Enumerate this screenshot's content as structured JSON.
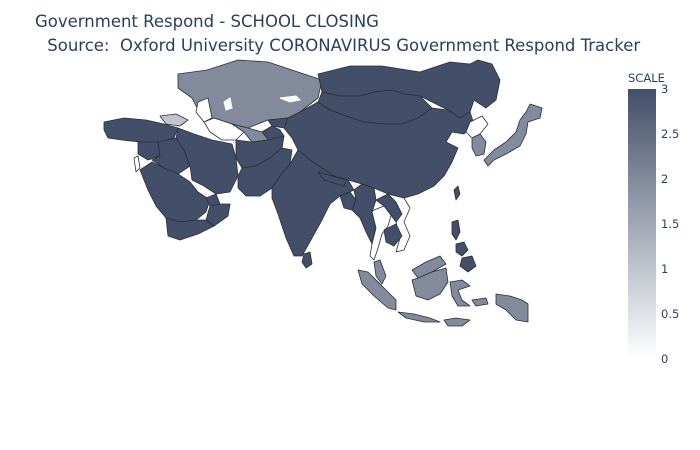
{
  "title": {
    "line1": "Government Respond - SCHOOL CLOSING",
    "line2": " Source:  Oxford University CORONAVIRUS Government Respond Tracker"
  },
  "colorbar": {
    "title": "SCALE",
    "ticks": [
      "0",
      "0.5",
      "1",
      "1.5",
      "2",
      "2.5",
      "3"
    ],
    "min": 0,
    "max": 3,
    "colors": {
      "low": "#ffffff",
      "high": "#434f69"
    }
  },
  "chart_data": {
    "type": "choropleth",
    "region": "Asia",
    "colorscale": [
      "#ffffff",
      "#434f69"
    ],
    "range": [
      0,
      3
    ],
    "regions": [
      {
        "name": "Kazakhstan",
        "value": 2
      },
      {
        "name": "China",
        "value": 3
      },
      {
        "name": "Mongolia",
        "value": 3
      },
      {
        "name": "Russia",
        "value": 3
      },
      {
        "name": "India",
        "value": 3
      },
      {
        "name": "Iran",
        "value": 3
      },
      {
        "name": "Saudi Arabia",
        "value": 3
      },
      {
        "name": "Turkey",
        "value": 3
      },
      {
        "name": "Afghanistan",
        "value": 3
      },
      {
        "name": "Pakistan",
        "value": 3
      },
      {
        "name": "Japan",
        "value": 2
      },
      {
        "name": "South Korea",
        "value": 2
      },
      {
        "name": "North Korea",
        "value": 0
      },
      {
        "name": "Indonesia",
        "value": 2
      },
      {
        "name": "Thailand",
        "value": 0
      },
      {
        "name": "Vietnam",
        "value": 0
      },
      {
        "name": "Myanmar",
        "value": 3
      },
      {
        "name": "Malaysia",
        "value": 2
      },
      {
        "name": "Philippines",
        "value": 3
      },
      {
        "name": "Cambodia",
        "value": 3
      },
      {
        "name": "Laos",
        "value": 3
      },
      {
        "name": "Georgia",
        "value": 1
      },
      {
        "name": "Turkmenistan",
        "value": 0
      },
      {
        "name": "Uzbekistan",
        "value": 2
      },
      {
        "name": "Kyrgyzstan",
        "value": 3
      },
      {
        "name": "Tajikistan",
        "value": 3
      },
      {
        "name": "Taiwan",
        "value": 3
      },
      {
        "name": "Sri Lanka",
        "value": 3
      },
      {
        "name": "Nepal",
        "value": 3
      },
      {
        "name": "Bangladesh",
        "value": 3
      },
      {
        "name": "Yemen",
        "value": 3
      },
      {
        "name": "Oman",
        "value": 3
      },
      {
        "name": "UAE",
        "value": 3
      },
      {
        "name": "Iraq",
        "value": 3
      },
      {
        "name": "Syria",
        "value": 3
      },
      {
        "name": "Israel",
        "value": 0
      },
      {
        "name": "Papua New Guinea",
        "value": 2
      }
    ]
  }
}
